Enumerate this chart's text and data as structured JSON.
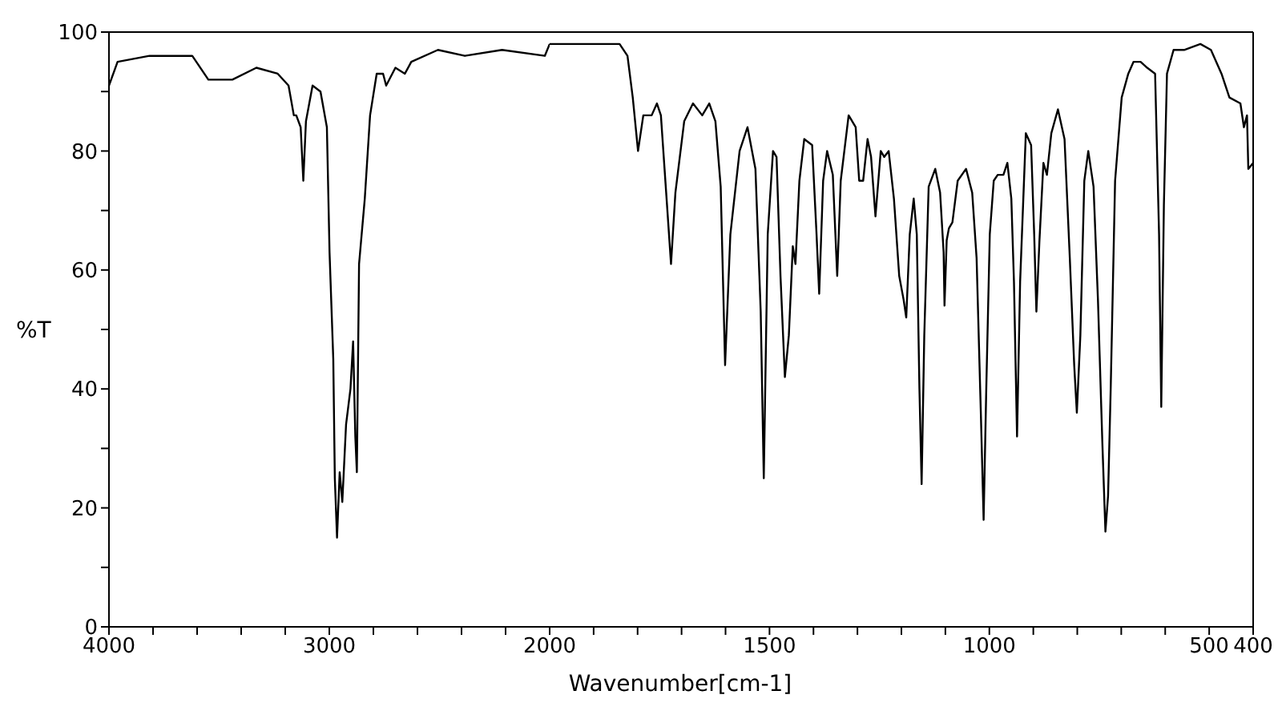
{
  "chart_data": [
    {
      "type": "line",
      "ylabel": "%T",
      "color": "#000000",
      "marker": "none",
      "grid": false,
      "legend": false,
      "xlim": [
        4000,
        2000
      ],
      "ylim": [
        0,
        100
      ],
      "xticks": [
        4000,
        {
          "value": 3800,
          "label": null
        },
        {
          "value": 3600,
          "label": null
        },
        {
          "value": 3400,
          "label": null
        },
        {
          "value": 3200,
          "label": null
        },
        3000,
        {
          "value": 2800,
          "label": null
        },
        {
          "value": 2600,
          "label": null
        },
        {
          "value": 2400,
          "label": null
        },
        {
          "value": 2200,
          "label": null
        },
        {
          "value": 2000,
          "label": null
        }
      ],
      "yticks": [
        0,
        {
          "value": 10,
          "label": null
        },
        20,
        {
          "value": 30,
          "label": null
        },
        40,
        {
          "value": 50,
          "label": null
        },
        60,
        {
          "value": 70,
          "label": null
        },
        80,
        {
          "value": 90,
          "label": null
        },
        100
      ],
      "x": [
        4000,
        3961,
        3816,
        3622,
        3549,
        3440,
        3331,
        3234,
        3185,
        3161,
        3150,
        3130,
        3118,
        3106,
        3076,
        3040,
        3011,
        2999,
        2982,
        2975,
        2965,
        2953,
        2941,
        2924,
        2904,
        2892,
        2882,
        2875,
        2865,
        2839,
        2815,
        2785,
        2756,
        2742,
        2700,
        2657,
        2628,
        2507,
        2385,
        2216,
        2022,
        2000
      ],
      "values": [
        91,
        95,
        96,
        96,
        92,
        92,
        94,
        93,
        91,
        86,
        86,
        84,
        75,
        85,
        91,
        90,
        84,
        63,
        45,
        25,
        15,
        26,
        21,
        34,
        40,
        48,
        32,
        26,
        61,
        72,
        86,
        93,
        93,
        91,
        94,
        93,
        95,
        97,
        96,
        97,
        96,
        98
      ]
    },
    {
      "type": "line",
      "xlabel": "Wavenumber[cm-1]",
      "color": "#000000",
      "marker": "none",
      "grid": false,
      "legend": false,
      "tick_labels": "x",
      "xlim": [
        2000,
        400
      ],
      "ylim": [
        0,
        100
      ],
      "xticks": [
        2000,
        {
          "value": 1900,
          "label": null
        },
        {
          "value": 1800,
          "label": null
        },
        {
          "value": 1700,
          "label": null
        },
        {
          "value": 1600,
          "label": null
        },
        1500,
        {
          "value": 1400,
          "label": null
        },
        {
          "value": 1300,
          "label": null
        },
        {
          "value": 1200,
          "label": null
        },
        {
          "value": 1100,
          "label": null
        },
        1000,
        {
          "value": 900,
          "label": null
        },
        {
          "value": 800,
          "label": null
        },
        {
          "value": 700,
          "label": null
        },
        {
          "value": 600,
          "label": null
        },
        500,
        400
      ],
      "x": [
        2000,
        1993,
        1938,
        1914,
        1841,
        1823,
        1811,
        1799,
        1787,
        1768,
        1756,
        1747,
        1735,
        1724,
        1714,
        1694,
        1674,
        1653,
        1637,
        1623,
        1611,
        1601,
        1589,
        1568,
        1550,
        1532,
        1520,
        1513,
        1504,
        1492,
        1484,
        1475,
        1465,
        1456,
        1447,
        1441,
        1432,
        1421,
        1403,
        1393,
        1387,
        1378,
        1369,
        1356,
        1346,
        1338,
        1320,
        1304,
        1296,
        1287,
        1277,
        1269,
        1259,
        1247,
        1239,
        1229,
        1217,
        1205,
        1195,
        1189,
        1181,
        1172,
        1165,
        1159,
        1154,
        1148,
        1138,
        1123,
        1112,
        1104,
        1102,
        1097,
        1092,
        1084,
        1072,
        1053,
        1039,
        1029,
        1019,
        1013,
        1007,
        999,
        990,
        981,
        968,
        959,
        950,
        944,
        937,
        930,
        917,
        905,
        898,
        893,
        886,
        877,
        869,
        859,
        844,
        829,
        817,
        807,
        801,
        793,
        784,
        775,
        763,
        753,
        743,
        736,
        730,
        724,
        714,
        699,
        684,
        672,
        656,
        641,
        623,
        614,
        609,
        603,
        596,
        581,
        557,
        520,
        496,
        472,
        454,
        429,
        421,
        414,
        411,
        400
      ],
      "values": [
        98,
        98,
        98,
        98,
        98,
        96,
        89,
        80,
        86,
        86,
        88,
        86,
        73,
        61,
        73,
        85,
        88,
        86,
        88,
        85,
        74,
        44,
        66,
        80,
        84,
        77,
        53,
        25,
        66,
        80,
        79,
        59,
        42,
        49,
        64,
        61,
        75,
        82,
        81,
        66,
        56,
        75,
        80,
        76,
        59,
        75,
        86,
        84,
        75,
        75,
        82,
        79,
        69,
        80,
        79,
        80,
        72,
        59,
        55,
        52,
        66,
        72,
        66,
        40,
        24,
        49,
        74,
        77,
        73,
        63,
        54,
        65,
        67,
        68,
        75,
        77,
        73,
        62,
        35,
        18,
        40,
        66,
        75,
        76,
        76,
        78,
        72,
        58,
        32,
        58,
        83,
        81,
        66,
        53,
        65,
        78,
        76,
        83,
        87,
        82,
        62,
        44,
        36,
        49,
        75,
        80,
        74,
        55,
        31,
        16,
        22,
        40,
        75,
        89,
        93,
        95,
        95,
        94,
        93,
        66,
        37,
        71,
        93,
        97,
        97,
        98,
        97,
        93,
        89,
        88,
        84,
        86,
        77,
        78
      ]
    }
  ]
}
